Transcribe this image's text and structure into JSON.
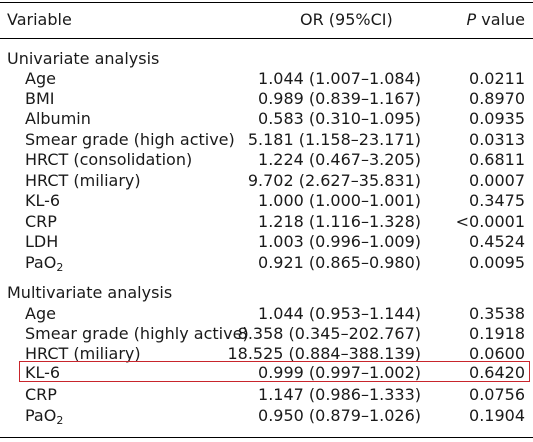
{
  "header": {
    "variable": "Variable",
    "or": "OR (95%CI)",
    "p_italic": "P",
    "p_rest": " value"
  },
  "univariate": {
    "title": "Univariate analysis",
    "rows": [
      {
        "variable": "Age",
        "or": "1.044 (1.007–1.084)",
        "p": "0.0211"
      },
      {
        "variable": "BMI",
        "or": "0.989 (0.839–1.167)",
        "p": "0.8970"
      },
      {
        "variable": "Albumin",
        "or": "0.583 (0.310–1.095)",
        "p": "0.0935"
      },
      {
        "variable": "Smear grade (high active)",
        "or": "5.181 (1.158–23.171)",
        "p": "0.0313"
      },
      {
        "variable": "HRCT (consolidation)",
        "or": "1.224 (0.467–3.205)",
        "p": "0.6811"
      },
      {
        "variable": "HRCT (miliary)",
        "or": "9.702 (2.627–35.831)",
        "p": "0.0007"
      },
      {
        "variable": "KL-6",
        "or": "1.000 (1.000–1.001)",
        "p": "0.3475"
      },
      {
        "variable": "CRP",
        "or": "1.218 (1.116–1.328)",
        "p": "<0.0001"
      },
      {
        "variable": "LDH",
        "or": "1.003 (0.996–1.009)",
        "p": "0.4524"
      },
      {
        "variable": "PaO",
        "sub": "2",
        "or": "0.921 (0.865–0.980)",
        "p": "0.0095"
      }
    ]
  },
  "multivariate": {
    "title": "Multivariate analysis",
    "rows": [
      {
        "variable": "Age",
        "or": "1.044 (0.953–1.144)",
        "p": "0.3538"
      },
      {
        "variable": "Smear grade (highly active)",
        "or": "8.358 (0.345–202.767)",
        "p": "0.1918"
      },
      {
        "variable": "HRCT (miliary)",
        "or": "18.525 (0.884–388.139)",
        "p": "0.0600"
      },
      {
        "variable": "KL-6",
        "or": "0.999 (0.997–1.002)",
        "p": "0.6420"
      },
      {
        "variable": "CRP",
        "or": "1.147 (0.986–1.333)",
        "p": "0.0756"
      },
      {
        "variable": "PaO",
        "sub": "2",
        "or": "0.950 (0.879–1.026)",
        "p": "0.1904"
      }
    ]
  },
  "highlight_color": "#c8252c"
}
